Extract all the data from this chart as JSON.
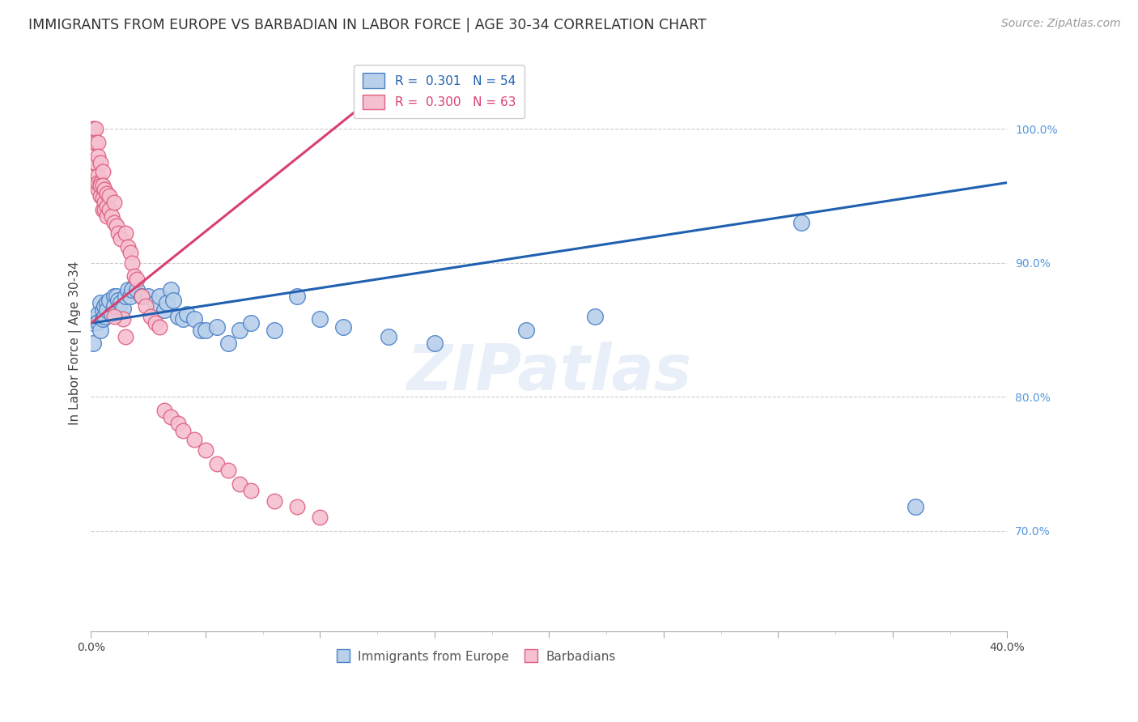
{
  "title": "IMMIGRANTS FROM EUROPE VS BARBADIAN IN LABOR FORCE | AGE 30-34 CORRELATION CHART",
  "source": "Source: ZipAtlas.com",
  "ylabel": "In Labor Force | Age 30-34",
  "xlim": [
    0.0,
    0.4
  ],
  "ylim": [
    0.625,
    1.055
  ],
  "ytick_positions": [
    0.7,
    0.8,
    0.9,
    1.0
  ],
  "ytick_labels": [
    "70.0%",
    "80.0%",
    "90.0%",
    "100.0%"
  ],
  "xtick_positions": [
    0.0,
    0.05,
    0.1,
    0.15,
    0.2,
    0.25,
    0.3,
    0.35,
    0.4
  ],
  "xtick_labels_show": [
    "0.0%",
    "",
    "",
    "",
    "",
    "",
    "",
    "",
    "40.0%"
  ],
  "blue_R": "0.301",
  "blue_N": "54",
  "pink_R": "0.300",
  "pink_N": "63",
  "blue_color": "#b8d0ea",
  "blue_edge_color": "#4a80c8",
  "pink_color": "#f5c0d0",
  "pink_edge_color": "#e06080",
  "blue_line_color": "#2060b0",
  "pink_line_color": "#d84070",
  "watermark": "ZIPatlas",
  "grid_color": "#cccccc",
  "background_color": "#ffffff",
  "title_fontsize": 12.5,
  "source_fontsize": 10,
  "label_fontsize": 11,
  "tick_fontsize": 10,
  "legend_fontsize": 11,
  "blue_scatter_x": [
    0.001,
    0.001,
    0.002,
    0.003,
    0.003,
    0.004,
    0.004,
    0.005,
    0.005,
    0.006,
    0.006,
    0.007,
    0.007,
    0.008,
    0.009,
    0.01,
    0.01,
    0.011,
    0.012,
    0.013,
    0.014,
    0.015,
    0.016,
    0.017,
    0.018,
    0.02,
    0.022,
    0.025,
    0.028,
    0.03,
    0.032,
    0.033,
    0.035,
    0.036,
    0.038,
    0.04,
    0.042,
    0.045,
    0.048,
    0.05,
    0.055,
    0.06,
    0.065,
    0.07,
    0.08,
    0.09,
    0.1,
    0.11,
    0.13,
    0.15,
    0.19,
    0.22,
    0.31,
    0.36
  ],
  "blue_scatter_y": [
    0.855,
    0.84,
    0.858,
    0.862,
    0.856,
    0.87,
    0.85,
    0.865,
    0.858,
    0.868,
    0.86,
    0.87,
    0.865,
    0.872,
    0.862,
    0.875,
    0.868,
    0.875,
    0.872,
    0.87,
    0.866,
    0.875,
    0.88,
    0.875,
    0.88,
    0.88,
    0.875,
    0.875,
    0.87,
    0.875,
    0.865,
    0.87,
    0.88,
    0.872,
    0.86,
    0.858,
    0.862,
    0.858,
    0.85,
    0.85,
    0.852,
    0.84,
    0.85,
    0.855,
    0.85,
    0.875,
    0.858,
    0.852,
    0.845,
    0.84,
    0.85,
    0.86,
    0.93,
    0.718
  ],
  "pink_scatter_x": [
    0.001,
    0.001,
    0.001,
    0.001,
    0.001,
    0.002,
    0.002,
    0.002,
    0.002,
    0.003,
    0.003,
    0.003,
    0.003,
    0.003,
    0.004,
    0.004,
    0.004,
    0.004,
    0.005,
    0.005,
    0.005,
    0.005,
    0.006,
    0.006,
    0.006,
    0.007,
    0.007,
    0.007,
    0.008,
    0.008,
    0.009,
    0.01,
    0.01,
    0.011,
    0.012,
    0.013,
    0.014,
    0.015,
    0.016,
    0.017,
    0.018,
    0.019,
    0.02,
    0.022,
    0.024,
    0.026,
    0.028,
    0.03,
    0.032,
    0.035,
    0.038,
    0.04,
    0.045,
    0.05,
    0.055,
    0.06,
    0.065,
    0.07,
    0.08,
    0.09,
    0.1,
    0.01,
    0.015
  ],
  "pink_scatter_y": [
    1.0,
    1.0,
    0.99,
    0.975,
    0.96,
    1.0,
    0.99,
    0.975,
    0.96,
    0.99,
    0.98,
    0.965,
    0.955,
    0.96,
    0.975,
    0.96,
    0.95,
    0.958,
    0.968,
    0.958,
    0.948,
    0.94,
    0.955,
    0.945,
    0.94,
    0.952,
    0.942,
    0.935,
    0.95,
    0.94,
    0.935,
    0.945,
    0.93,
    0.928,
    0.922,
    0.918,
    0.858,
    0.922,
    0.912,
    0.908,
    0.9,
    0.89,
    0.888,
    0.875,
    0.868,
    0.86,
    0.855,
    0.852,
    0.79,
    0.785,
    0.78,
    0.775,
    0.768,
    0.76,
    0.75,
    0.745,
    0.735,
    0.73,
    0.722,
    0.718,
    0.71,
    0.86,
    0.845
  ],
  "blue_line_x": [
    0.0,
    0.4
  ],
  "blue_line_y": [
    0.855,
    0.96
  ],
  "pink_line_x": [
    0.0,
    0.135
  ],
  "pink_line_y": [
    0.855,
    1.04
  ]
}
